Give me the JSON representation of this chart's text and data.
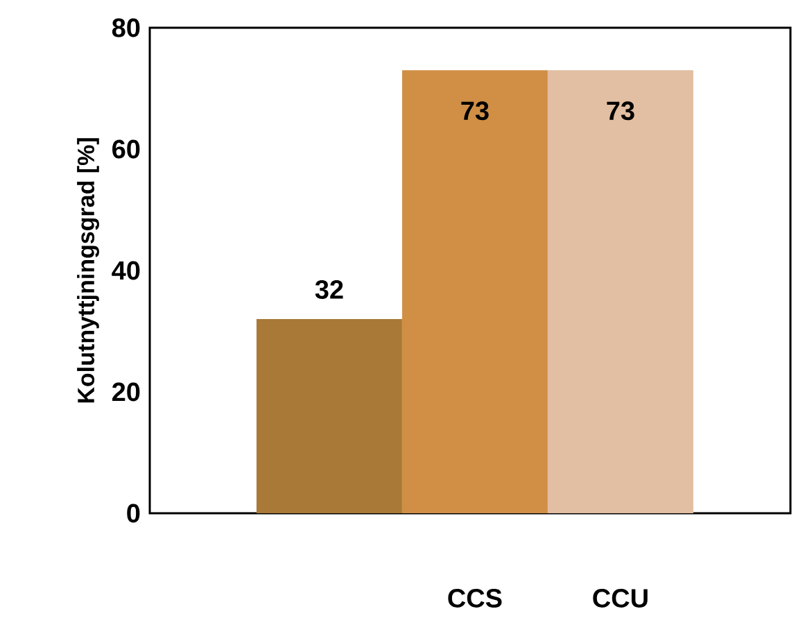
{
  "chart_data": {
    "type": "bar",
    "ylabel": "Kolutnyttjningsgrad [%]",
    "categories": [
      null,
      "CCS",
      "CCU"
    ],
    "values": [
      32,
      73,
      73
    ],
    "colors": [
      "#a87937",
      "#d08f45",
      "#e2bea2"
    ],
    "ylim": [
      0,
      80
    ],
    "yticks": [
      0,
      20,
      40,
      60,
      80
    ],
    "data_labels": true
  }
}
